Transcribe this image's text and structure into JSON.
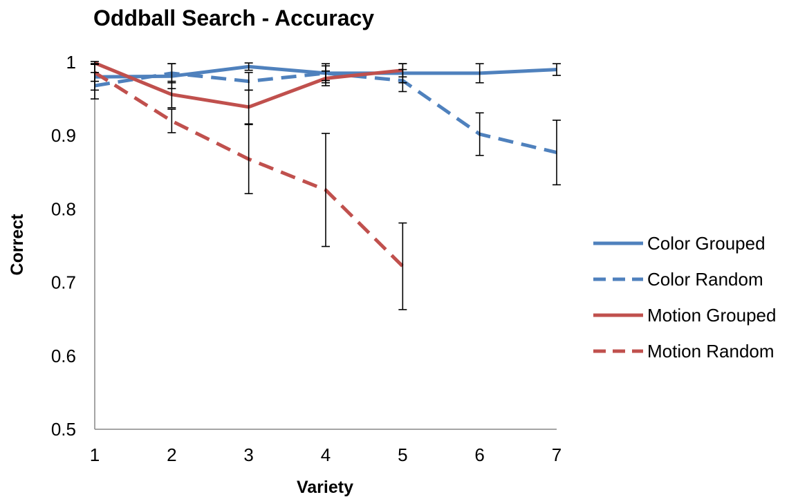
{
  "chart_data": {
    "type": "line",
    "title": "Oddball Search - Accuracy",
    "xlabel": "Variety",
    "ylabel": "Correct",
    "x": [
      1,
      2,
      3,
      4,
      5,
      6,
      7
    ],
    "x_tick_labels": [
      "1",
      "2",
      "3",
      "4",
      "5",
      "6",
      "7"
    ],
    "ylim": [
      0.5,
      1.0
    ],
    "y_tick_labels": [
      "0.5",
      "0.6",
      "0.7",
      "0.8",
      "0.9",
      "1"
    ],
    "grid": false,
    "legend_position": "right",
    "error_bars": true,
    "series": [
      {
        "name": "Color Grouped",
        "color": "#4F81BD",
        "line_style": "solid",
        "x": [
          1,
          2,
          3,
          4,
          5,
          6,
          7
        ],
        "values": [
          0.98,
          0.981,
          0.994,
          0.985,
          0.985,
          0.985,
          0.99
        ],
        "error": [
          0.018,
          0.017,
          0.005,
          0.013,
          0.013,
          0.013,
          0.008
        ]
      },
      {
        "name": "Color Random",
        "color": "#4F81BD",
        "line_style": "dashed",
        "x": [
          1,
          2,
          3,
          4,
          5,
          6,
          7
        ],
        "values": [
          0.968,
          0.985,
          0.974,
          0.985,
          0.975,
          0.902,
          0.877
        ],
        "error": [
          0.018,
          0.013,
          0.012,
          0.01,
          0.015,
          0.029,
          0.044
        ]
      },
      {
        "name": "Motion Grouped",
        "color": "#C0504D",
        "line_style": "solid",
        "x": [
          1,
          2,
          3,
          4,
          5
        ],
        "values": [
          0.999,
          0.956,
          0.939,
          0.978,
          0.989
        ],
        "error": [
          0.002,
          0.018,
          0.023,
          0.01,
          0.009
        ]
      },
      {
        "name": "Motion Random",
        "color": "#C0504D",
        "line_style": "dashed",
        "x": [
          1,
          2,
          3,
          4,
          5
        ],
        "values": [
          0.986,
          0.92,
          0.868,
          0.826,
          0.722
        ],
        "error": [
          0.012,
          0.016,
          0.047,
          0.077,
          0.059
        ]
      }
    ]
  }
}
